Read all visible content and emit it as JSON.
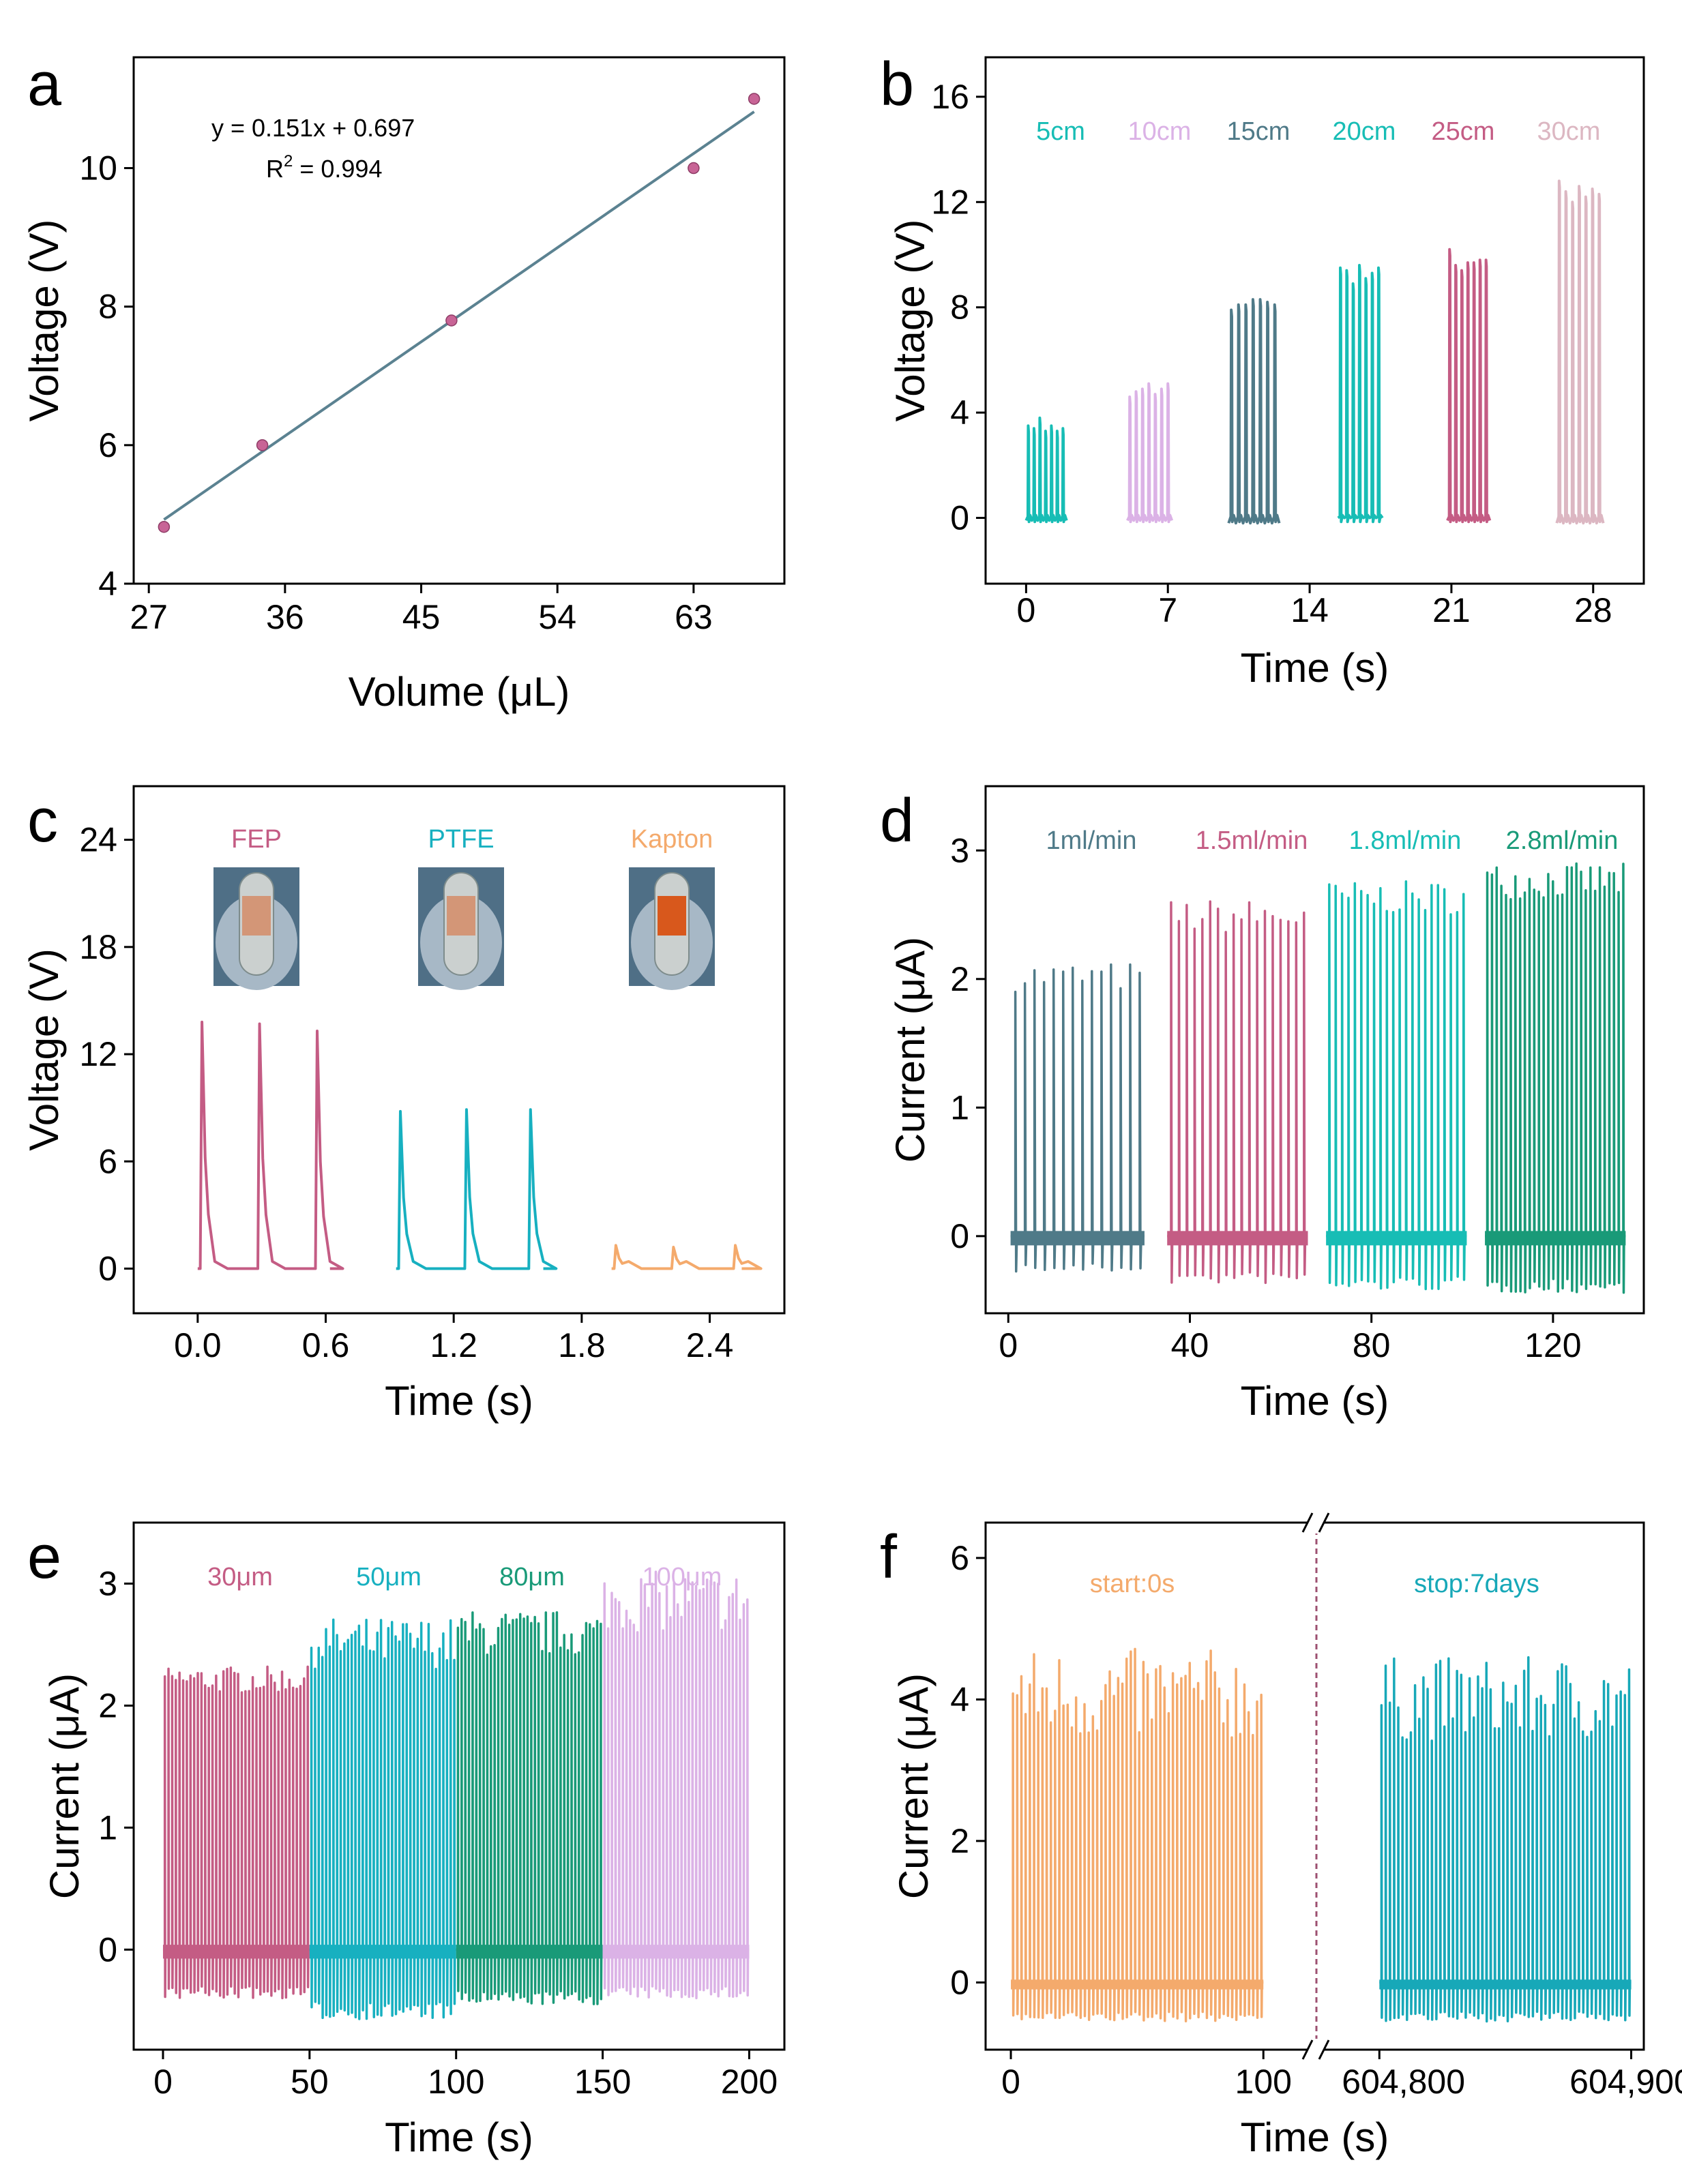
{
  "chart_data": [
    {
      "id": "a",
      "type": "scatter",
      "panel_label": "a",
      "xlabel": "Volume (μL)",
      "ylabel": "Voltage (V)",
      "xlim": [
        26,
        69
      ],
      "ylim": [
        4,
        11.6
      ],
      "xticks": [
        27,
        36,
        45,
        54,
        63
      ],
      "yticks": [
        4,
        6,
        8,
        10
      ],
      "points": {
        "x": [
          28,
          34.5,
          47,
          63,
          67
        ],
        "y": [
          4.82,
          6.0,
          7.8,
          10.0,
          11.0
        ]
      },
      "fit": {
        "x": [
          28,
          67
        ],
        "slope": 0.151,
        "intercept": 0.697
      },
      "equation": "y = 0.151x + 0.697",
      "r2_prefix": "R",
      "r2_sup": "2",
      "r2_suffix": " = 0.994",
      "colors": {
        "point": "#c86496",
        "fit": "#5b8291"
      }
    },
    {
      "id": "b",
      "type": "line",
      "panel_label": "b",
      "xlabel": "Time (s)",
      "ylabel": "Voltage (V)",
      "xlim": [
        -2,
        30.5
      ],
      "ylim": [
        -2.5,
        17.5
      ],
      "xticks": [
        0,
        7,
        14,
        21,
        28
      ],
      "yticks": [
        0,
        4,
        8,
        12,
        16
      ],
      "series": [
        {
          "name": "5cm",
          "color": "#17bdb5",
          "start": 0,
          "end": 2,
          "peaks": [
            3.5,
            3.4,
            3.8,
            3.3,
            3.5,
            3.3,
            3.4
          ],
          "low": -0.1
        },
        {
          "name": "10cm",
          "color": "#dbb2e6",
          "start": 5,
          "end": 7.2,
          "peaks": [
            4.6,
            4.8,
            4.9,
            5.1,
            4.7,
            4.9,
            5.1
          ],
          "low": -0.1
        },
        {
          "name": "15cm",
          "color": "#4f7a88",
          "start": 10,
          "end": 12.5,
          "peaks": [
            7.9,
            8.1,
            8.1,
            8.3,
            8.3,
            8.2,
            8.1
          ],
          "low": -0.2
        },
        {
          "name": "20cm",
          "color": "#17bdb5",
          "start": 15.4,
          "end": 17.6,
          "peaks": [
            9.5,
            9.4,
            8.9,
            9.6,
            9.1,
            9.3,
            9.5
          ],
          "low": 0
        },
        {
          "name": "25cm",
          "color": "#c45c84",
          "start": 20.8,
          "end": 22.9,
          "peaks": [
            10.2,
            9.6,
            9.4,
            9.7,
            9.7,
            9.8,
            9.8
          ],
          "low": -0.1
        },
        {
          "name": "30cm",
          "color": "#dcb7c2",
          "start": 26.2,
          "end": 28.5,
          "peaks": [
            12.8,
            12.4,
            12.0,
            12.6,
            12.2,
            12.5,
            12.3
          ],
          "low": -0.2
        }
      ]
    },
    {
      "id": "c",
      "type": "line",
      "panel_label": "c",
      "xlabel": "Time (s)",
      "ylabel": "Voltage (V)",
      "xlim": [
        -0.3,
        2.75
      ],
      "ylim": [
        -2.5,
        27
      ],
      "xticks": [
        "0.0",
        "0.6",
        "1.2",
        "1.8",
        "2.4"
      ],
      "yticks": [
        0,
        6,
        12,
        18,
        24
      ],
      "series": [
        {
          "name": "FEP",
          "color": "#c45c84",
          "start": 0.0,
          "end": 0.62,
          "peaks": [
            {
              "t": 0.02,
              "v": 13.8
            },
            {
              "t": 0.29,
              "v": 13.7
            },
            {
              "t": 0.56,
              "v": 13.3
            }
          ]
        },
        {
          "name": "PTFE",
          "color": "#17b0c0",
          "start": 0.93,
          "end": 1.62,
          "peaks": [
            {
              "t": 0.95,
              "v": 8.8
            },
            {
              "t": 1.26,
              "v": 8.9
            },
            {
              "t": 1.56,
              "v": 8.9
            }
          ]
        },
        {
          "name": "Kapton",
          "color": "#f4aa6c",
          "start": 1.94,
          "end": 2.55,
          "peaks": [
            {
              "t": 1.96,
              "v": 1.3
            },
            {
              "t": 2.23,
              "v": 1.2
            },
            {
              "t": 2.52,
              "v": 1.3
            }
          ]
        }
      ]
    },
    {
      "id": "d",
      "type": "line",
      "panel_label": "d",
      "xlabel": "Time (s)",
      "ylabel": "Current (μA)",
      "xlim": [
        -5,
        140
      ],
      "ylim": [
        -0.6,
        3.5
      ],
      "xticks": [
        0,
        40,
        80,
        120
      ],
      "yticks": [
        0,
        1,
        2,
        3
      ],
      "series": [
        {
          "name": "1ml/min",
          "color": "#4f7a88",
          "start": 0.5,
          "end": 30,
          "spikes": 14,
          "peak_min": 1.9,
          "peak_max": 2.13,
          "low": -0.28
        },
        {
          "name": "1.5ml/min",
          "color": "#c45c84",
          "start": 35,
          "end": 66,
          "spikes": 18,
          "peak_min": 2.35,
          "peak_max": 2.62,
          "low": -0.37
        },
        {
          "name": "1.8ml/min",
          "color": "#17bdb5",
          "start": 70,
          "end": 101,
          "spikes": 22,
          "peak_min": 2.5,
          "peak_max": 2.76,
          "low": -0.42
        },
        {
          "name": "2.8ml/min",
          "color": "#199a78",
          "start": 105,
          "end": 136,
          "spikes": 30,
          "peak_min": 2.62,
          "peak_max": 2.9,
          "low": -0.44
        }
      ]
    },
    {
      "id": "e",
      "type": "line",
      "panel_label": "e",
      "xlabel": "Time (s)",
      "ylabel": "Current (μA)",
      "xlim": [
        -10,
        212
      ],
      "ylim": [
        -0.82,
        3.5
      ],
      "xticks": [
        0,
        50,
        100,
        150,
        200
      ],
      "yticks": [
        0,
        1,
        2,
        3
      ],
      "series": [
        {
          "name": "30μm",
          "color": "#c45c84",
          "start": 0,
          "end": 50,
          "spikes": 40,
          "peak_min": 2.1,
          "peak_max": 2.32,
          "low": -0.4
        },
        {
          "name": "50μm",
          "color": "#17b0c0",
          "start": 50,
          "end": 100,
          "spikes": 40,
          "peak_min": 2.3,
          "peak_max": 2.72,
          "low": -0.57
        },
        {
          "name": "80μm",
          "color": "#199a78",
          "start": 100,
          "end": 150,
          "spikes": 40,
          "peak_min": 2.4,
          "peak_max": 2.78,
          "low": -0.45
        },
        {
          "name": "100μm",
          "color": "#dbb2e6",
          "start": 150,
          "end": 200,
          "spikes": 40,
          "peak_min": 2.6,
          "peak_max": 3.1,
          "low": -0.4
        }
      ]
    },
    {
      "id": "f",
      "type": "line",
      "panel_label": "f",
      "xlabel": "Time (s)",
      "ylabel": "Current (μA)",
      "ylim": [
        -0.95,
        6.5
      ],
      "xticks": [
        "0",
        "100",
        "604,800",
        "604,900"
      ],
      "yticks": [
        0,
        2,
        4,
        6
      ],
      "segments": [
        {
          "xlim": [
            -10,
            121
          ],
          "ticks": [
            0,
            100
          ]
        },
        {
          "xlim": [
            604775,
            604905
          ],
          "ticks": [
            604800,
            604900
          ]
        }
      ],
      "series": [
        {
          "name": "start:0s",
          "color": "#f4aa6c",
          "segment": 0,
          "start": 0,
          "end": 100,
          "spikes": 60,
          "peak_min": 3.4,
          "peak_max": 4.72,
          "low": -0.55
        },
        {
          "name": "stop:7days",
          "color": "#17a8b8",
          "segment": 1,
          "start": 604800,
          "end": 604900,
          "spikes": 60,
          "peak_min": 3.4,
          "peak_max": 4.6,
          "low": -0.55
        }
      ],
      "break_line_color": "#9c5070"
    }
  ]
}
